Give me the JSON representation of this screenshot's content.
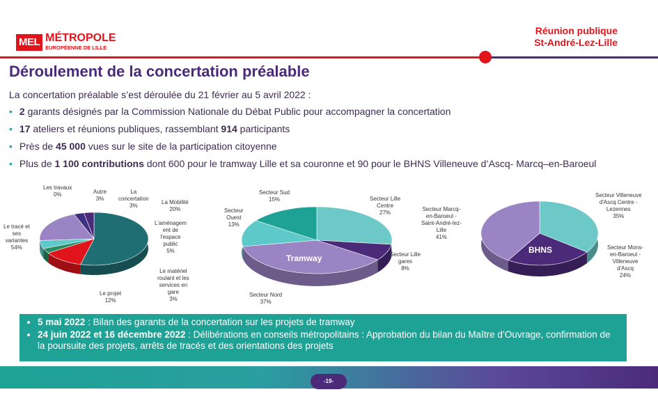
{
  "logo": {
    "badge": "MEL",
    "line1": "MÉTROPOLE",
    "line2": "EUROPÉENNE DE LILLE"
  },
  "meeting": {
    "line1": "Réunion publique",
    "line2": "St-André-Lez-Lille"
  },
  "title": "Déroulement de la concertation préalable",
  "intro": "La concertation préalable s’est déroulée du 21 février au 5 avril 2022 :",
  "bullets": [
    {
      "bold": "2",
      "text": " garants désignés par la Commission Nationale du Débat Public pour accompagner la concertation"
    },
    {
      "bold": "17",
      "text": " ateliers et réunions publiques, rassemblant ",
      "bold2": "914",
      "text2": " participants"
    },
    {
      "pre": "Près de ",
      "bold": "45 000",
      "text": " vues sur le site de la participation citoyenne"
    },
    {
      "pre": "Plus de ",
      "bold": "1 100 contributions",
      "text": " dont 600 pour le tramway Lille et sa couronne et 90 pour le BHNS Villeneuve d’Ascq- Marcq–en-Baroeul"
    }
  ],
  "chart_data": [
    {
      "type": "pie",
      "title": "",
      "slices": [
        {
          "label": "Le tracé et ses variantes",
          "value": 54,
          "color": "#1e6e74"
        },
        {
          "label": "Le projet",
          "value": 12,
          "color": "#e2141b"
        },
        {
          "label": "Le matériel roulant et les services en gare",
          "value": 3,
          "color": "#2a8a63"
        },
        {
          "label": "L'aménagement de l'espace public",
          "value": 5,
          "color": "#5ec9c9"
        },
        {
          "label": "La Mobilité",
          "value": 20,
          "color": "#9b84c4"
        },
        {
          "label": "La concertation",
          "value": 3,
          "color": "#3f2f80"
        },
        {
          "label": "Autre",
          "value": 3,
          "color": "#4b2a7a"
        },
        {
          "label": "Les travaux",
          "value": 0,
          "color": "#bbbbbb"
        }
      ]
    },
    {
      "type": "pie",
      "center_label": "Tramway",
      "slices": [
        {
          "label": "Secteur Lille Centre",
          "value": 27,
          "color": "#6cc9c8"
        },
        {
          "label": "Secteur Lille gares",
          "value": 8,
          "color": "#4b2a7a"
        },
        {
          "label": "Secteur Nord",
          "value": 37,
          "color": "#9b84c4"
        },
        {
          "label": "Secteur Ouest",
          "value": 13,
          "color": "#5ec9c9"
        },
        {
          "label": "Secteur Sud",
          "value": 15,
          "color": "#1da295"
        }
      ]
    },
    {
      "type": "pie",
      "center_label": "BHNS",
      "slices": [
        {
          "label": "Secteur Villeneuve d'Ascq Centre - Lezennes",
          "value": 35,
          "color": "#6cc9c8"
        },
        {
          "label": "Secteur Mons-en-Baroeul - Villeneuve d'Ascq",
          "value": 24,
          "color": "#4b2a7a"
        },
        {
          "label": "Secteur Marcq-en-Baroeul - Saint-André-lez-Lille",
          "value": 41,
          "color": "#9b84c4"
        }
      ]
    }
  ],
  "labels": {
    "c1": {
      "travaux": "Les travaux\n0%",
      "autre": "Autre\n3%",
      "concertation": "La\nconcertation\n3%",
      "mobilite": "La Mobilité\n20%",
      "amenagement": "L'aménagem\nent de\nl'espace\npublic\n5%",
      "materiel": "Le matériel\nroulant et les\nservices en\ngare\n3%",
      "projet": "Le projet\n12%",
      "trace": "Le tracé et\nses\nvariantes\n54%"
    },
    "c2": {
      "sud": "Secteur Sud\n15%",
      "ouest": "Secteur\nOuest\n13%",
      "centre": "Secteur Lille\nCentre\n27%",
      "gares": "Secteur Lille\ngares\n8%",
      "nord": "Secteur Nord\n37%"
    },
    "c3": {
      "marcq": "Secteur Marcq-\nen-Baroeul -\nSaint-André-lez-\nLille\n41%",
      "villeneuve": "Secteur Villeneuve\nd'Ascq Centre -\nLezennes\n35%",
      "mons": "Secteur Mons-\nen-Baroeul -\nVilleneuve\nd'Ascq\n24%"
    }
  },
  "box": [
    {
      "bold": "5 mai 2022",
      "text": " : Bilan des garants de la concertation sur les projets de tramway"
    },
    {
      "bold": "24 juin 2022 et 16 décembre 2022",
      "text": " : Délibérations en conseils métropolitains : Approbation du bilan du Maître d’Ouvrage, confirmation de la poursuite des projets, arrêts de tracés et des orientations des projets"
    }
  ],
  "page_number": "-19-"
}
